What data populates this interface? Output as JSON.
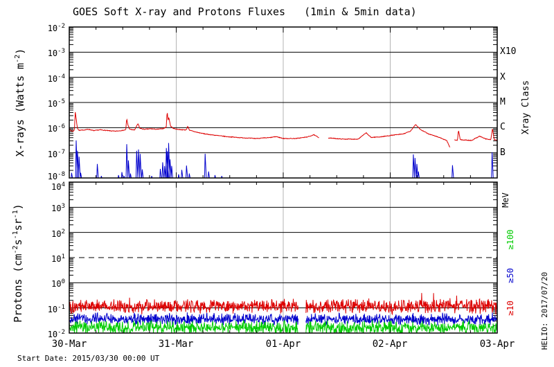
{
  "title": "GOES Soft X-ray and Protons Fluxes   (1min & 5min data)",
  "colors": {
    "red": "#dd0000",
    "blue": "#0000cc",
    "green": "#00cc00",
    "day_grid": "#b3b3b3",
    "frame": "#000000"
  },
  "x_axis": {
    "tick_labels": [
      "30-Mar",
      "31-Mar",
      "01-Apr",
      "02-Apr",
      "03-Apr"
    ],
    "minor_ticks_per_day": 4
  },
  "footer": {
    "start_date": "Start Date: 2015/03/30 00:00 UT"
  },
  "watermark": "HELIO: 2017/07/20",
  "panels": {
    "xray": {
      "y_tick_exponents": [
        -2,
        -3,
        -4,
        -5,
        -6,
        -7,
        -8
      ],
      "ylabel_segments": [
        {
          "t": "X-rays (Watts m"
        },
        {
          "t": "-2",
          "sup": true
        },
        {
          "t": ")"
        }
      ],
      "right_axis_label": "Xray Class",
      "class_labels": [
        {
          "text": "X10",
          "at_exponent": -3
        },
        {
          "text": "X",
          "at_exponent": -4
        },
        {
          "text": "M",
          "at_exponent": -5
        },
        {
          "text": "C",
          "at_exponent": -6
        },
        {
          "text": "B",
          "at_exponent": -7
        }
      ]
    },
    "protons": {
      "y_tick_exponents": [
        4,
        3,
        2,
        1,
        0,
        -1,
        -2
      ],
      "ylabel_segments": [
        {
          "t": "Protons (cm"
        },
        {
          "t": "-2",
          "sup": true
        },
        {
          "t": "s"
        },
        {
          "t": "-1",
          "sup": true
        },
        {
          "t": "sr"
        },
        {
          "t": "-1",
          "sup": true
        },
        {
          "t": ")"
        }
      ],
      "right_axis_label": "MeV",
      "mev_labels": [
        {
          "text": "≥100",
          "color": "#00cc00"
        },
        {
          "text": "≥50",
          "color": "#0000cc"
        },
        {
          "text": "≥10",
          "color": "#dd0000"
        }
      ]
    }
  },
  "chart_data": [
    {
      "type": "line",
      "title": "GOES soft X-ray flux",
      "x_unit": "days from 2015/03/30 00:00 UT",
      "x_range": [
        0,
        4
      ],
      "x_tick_labels": [
        "30-Mar",
        "31-Mar",
        "01-Apr",
        "02-Apr",
        "03-Apr"
      ],
      "y_scale": "log",
      "ylim_exponents": [
        -8,
        -2
      ],
      "grid": "decade-lines",
      "series": [
        {
          "name": "xray-long",
          "color": "#dd0000",
          "style": "interp",
          "jitter_log": 0.013,
          "gaps": [
            [
              2.335,
              2.42
            ],
            [
              3.562,
              3.6
            ]
          ],
          "points": [
            [
              0.0,
              9e-07
            ],
            [
              0.015,
              7.6e-07
            ],
            [
              0.035,
              7.2e-07
            ],
            [
              0.048,
              8e-07
            ],
            [
              0.056,
              4.2e-06
            ],
            [
              0.063,
              2.6e-06
            ],
            [
              0.075,
              1e-06
            ],
            [
              0.09,
              7.8e-07
            ],
            [
              0.13,
              8e-07
            ],
            [
              0.18,
              8.6e-07
            ],
            [
              0.23,
              7.6e-07
            ],
            [
              0.29,
              8.2e-07
            ],
            [
              0.36,
              7.6e-07
            ],
            [
              0.43,
              7.2e-07
            ],
            [
              0.5,
              7.8e-07
            ],
            [
              0.528,
              8.2e-07
            ],
            [
              0.537,
              2.25e-06
            ],
            [
              0.548,
              1.3e-06
            ],
            [
              0.565,
              8.6e-07
            ],
            [
              0.61,
              8e-07
            ],
            [
              0.643,
              1.45e-06
            ],
            [
              0.658,
              9.5e-07
            ],
            [
              0.7,
              8.6e-07
            ],
            [
              0.76,
              9e-07
            ],
            [
              0.82,
              8.6e-07
            ],
            [
              0.88,
              9.2e-07
            ],
            [
              0.906,
              1.05e-06
            ],
            [
              0.9155,
              4.6e-06
            ],
            [
              0.923,
              1.9e-06
            ],
            [
              0.9315,
              2.5e-06
            ],
            [
              0.947,
              1.15e-06
            ],
            [
              0.975,
              9.2e-07
            ],
            [
              1.01,
              8.6e-07
            ],
            [
              1.06,
              8.2e-07
            ],
            [
              1.095,
              8.2e-07
            ],
            [
              1.107,
              1.15e-06
            ],
            [
              1.125,
              7.8e-07
            ],
            [
              1.19,
              6.6e-07
            ],
            [
              1.27,
              5.6e-07
            ],
            [
              1.36,
              5e-07
            ],
            [
              1.47,
              4.4e-07
            ],
            [
              1.6,
              4e-07
            ],
            [
              1.74,
              3.7e-07
            ],
            [
              1.87,
              4e-07
            ],
            [
              1.935,
              4.4e-07
            ],
            [
              2.0,
              3.7e-07
            ],
            [
              2.12,
              3.7e-07
            ],
            [
              2.23,
              4.3e-07
            ],
            [
              2.285,
              5.2e-07
            ],
            [
              2.33,
              4.1e-07
            ],
            [
              2.42,
              3.9e-07
            ],
            [
              2.56,
              3.5e-07
            ],
            [
              2.7,
              3.5e-07
            ],
            [
              2.775,
              6.2e-07
            ],
            [
              2.82,
              4.1e-07
            ],
            [
              2.91,
              4.3e-07
            ],
            [
              3.02,
              5e-07
            ],
            [
              3.12,
              5.6e-07
            ],
            [
              3.19,
              7.2e-07
            ],
            [
              3.237,
              1.35e-06
            ],
            [
              3.285,
              8.2e-07
            ],
            [
              3.36,
              5.6e-07
            ],
            [
              3.46,
              4.1e-07
            ],
            [
              3.53,
              3e-07
            ],
            [
              3.558,
              1.6e-07
            ],
            [
              3.6,
              3.3e-07
            ],
            [
              3.628,
              3.1e-07
            ],
            [
              3.638,
              7.8e-07
            ],
            [
              3.655,
              3.3e-07
            ],
            [
              3.76,
              3.1e-07
            ],
            [
              3.835,
              4.6e-07
            ],
            [
              3.89,
              3.6e-07
            ],
            [
              3.94,
              3.3e-07
            ],
            [
              3.956,
              9.2e-07
            ],
            [
              3.972,
              3.3e-07
            ],
            [
              4.0,
              3.1e-07
            ]
          ]
        },
        {
          "name": "xray-short",
          "color": "#0000cc",
          "style": "spikes",
          "baseline": 8e-09,
          "spike_rise_days": 0.006,
          "spike_fall_days": 0.012,
          "spikes": [
            [
              0.022,
              1.6e-08
            ],
            [
              0.065,
              3.1e-07
            ],
            [
              0.077,
              1.2e-07
            ],
            [
              0.092,
              7e-08
            ],
            [
              0.107,
              1.6e-08
            ],
            [
              0.262,
              3.6e-08
            ],
            [
              0.3,
              1.2e-08
            ],
            [
              0.46,
              1.3e-08
            ],
            [
              0.492,
              1.7e-08
            ],
            [
              0.512,
              1.2e-08
            ],
            [
              0.537,
              2.2e-07
            ],
            [
              0.553,
              5e-08
            ],
            [
              0.572,
              1.5e-08
            ],
            [
              0.63,
              1.2e-07
            ],
            [
              0.647,
              1.35e-07
            ],
            [
              0.663,
              9e-08
            ],
            [
              0.682,
              2.2e-08
            ],
            [
              0.77,
              1.2e-08
            ],
            [
              0.851,
              2.3e-08
            ],
            [
              0.873,
              4.2e-08
            ],
            [
              0.891,
              3e-08
            ],
            [
              0.9075,
              1.55e-07
            ],
            [
              0.9165,
              1.15e-07
            ],
            [
              0.9285,
              2.45e-07
            ],
            [
              0.942,
              5.5e-08
            ],
            [
              0.957,
              3e-08
            ],
            [
              1.022,
              1.4e-08
            ],
            [
              1.052,
              2.1e-08
            ],
            [
              1.096,
              3.1e-08
            ],
            [
              1.122,
              1.5e-08
            ],
            [
              1.27,
              9.2e-08
            ],
            [
              1.302,
              1.8e-08
            ],
            [
              1.362,
              1.3e-08
            ],
            [
              1.425,
              1.2e-08
            ],
            [
              3.216,
              8.6e-08
            ],
            [
              3.232,
              6.2e-08
            ],
            [
              3.249,
              3.6e-08
            ],
            [
              3.263,
              1.8e-08
            ],
            [
              3.582,
              3.2e-08
            ],
            [
              3.952,
              1.05e-07
            ]
          ]
        }
      ],
      "right_axis": {
        "label": "Xray Class",
        "classes": [
          "B",
          "C",
          "M",
          "X",
          "X10"
        ]
      }
    },
    {
      "type": "line",
      "title": "GOES proton flux",
      "x_unit": "days from 2015/03/30 00:00 UT",
      "x_range": [
        0,
        4
      ],
      "x_tick_labels": [
        "30-Mar",
        "31-Mar",
        "01-Apr",
        "02-Apr",
        "03-Apr"
      ],
      "y_scale": "log",
      "ylim_exponents": [
        -2,
        4
      ],
      "grid": "decade-lines",
      "threshold_line": {
        "value_exponent": 1,
        "style": "dashed"
      },
      "series": [
        {
          "name": "protons-ge10MeV",
          "label": "≥10",
          "color": "#dd0000",
          "style": "noise",
          "base_level": 0.115,
          "log_amplitude": 0.33,
          "seed": 101,
          "spike_prob": 0.02,
          "gaps": [
            [
              2.142,
              2.212
            ]
          ]
        },
        {
          "name": "protons-ge50MeV",
          "label": "≥50",
          "color": "#0000cc",
          "style": "noise",
          "base_level": 0.036,
          "log_amplitude": 0.27,
          "seed": 202,
          "spike_prob": 0.0,
          "gaps": [
            [
              2.142,
              2.212
            ]
          ]
        },
        {
          "name": "protons-ge100MeV",
          "label": "≥100",
          "color": "#00cc00",
          "style": "noise",
          "base_level": 0.0165,
          "log_amplitude": 0.31,
          "seed": 303,
          "spike_prob": 0.0,
          "gaps": [
            [
              2.142,
              2.212
            ]
          ]
        }
      ],
      "right_axis": {
        "label": "MeV",
        "entries": [
          "≥100",
          "≥50",
          "≥10"
        ]
      }
    }
  ]
}
